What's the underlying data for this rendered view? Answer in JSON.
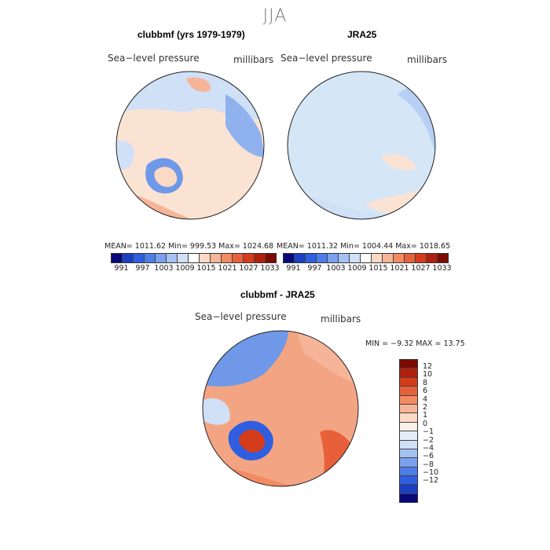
{
  "figure": {
    "season": "JJA"
  },
  "panels": [
    {
      "title": "clubbmf (yrs 1979-1979)",
      "field_label": "Sea−level pressure",
      "unit_label": "millibars",
      "stats": "MEAN= 1011.62   Min= 999.53   Max= 1024.68",
      "colors": {
        "ocean": "#fbe3d4",
        "land_patch": "#c7ddf3"
      }
    },
    {
      "title": "JRA25",
      "field_label": "Sea−level pressure",
      "unit_label": "millibars",
      "stats": "MEAN= 1011.32   Min= 1004.44   Max= 1018.65",
      "colors": {
        "ocean": "#d5e6f6",
        "land_patch": "#fbe3d4"
      }
    },
    {
      "title": "clubbmf - JRA25",
      "field_label": "Sea−level pressure",
      "unit_label": "millibars",
      "stats": "MIN =   −9.32  MAX =   13.75",
      "colors": {
        "ocean": "#f3a583",
        "land_patch": "#6f98e8"
      }
    }
  ],
  "colorbar_abs": {
    "tick_labels": [
      "991",
      "997",
      "1003",
      "1009",
      "1015",
      "1021",
      "1027",
      "1033"
    ],
    "colors": [
      "#08087a",
      "#1a3fc4",
      "#2f5fe0",
      "#4d7ee8",
      "#7aa0ee",
      "#a6c2f3",
      "#cfe0f7",
      "#ffffff",
      "#fbd9c4",
      "#f6b598",
      "#f28a62",
      "#e8603a",
      "#d43c1c",
      "#b0200c",
      "#7e0a04"
    ]
  },
  "colorbar_diff": {
    "tick_labels": [
      "12",
      "10",
      "8",
      "6",
      "4",
      "2",
      "1",
      "0",
      "−1",
      "−2",
      "−4",
      "−6",
      "−8",
      "−10",
      "−12"
    ],
    "colors": [
      "#7e0a04",
      "#b0200c",
      "#d43c1c",
      "#e8603a",
      "#f28a62",
      "#f6b598",
      "#fbd9c4",
      "#fdf0e8",
      "#e4eefa",
      "#cfe0f7",
      "#a6c2f3",
      "#7aa0ee",
      "#4d7ee8",
      "#2f5fe0",
      "#1a3fc4",
      "#08087a"
    ]
  }
}
